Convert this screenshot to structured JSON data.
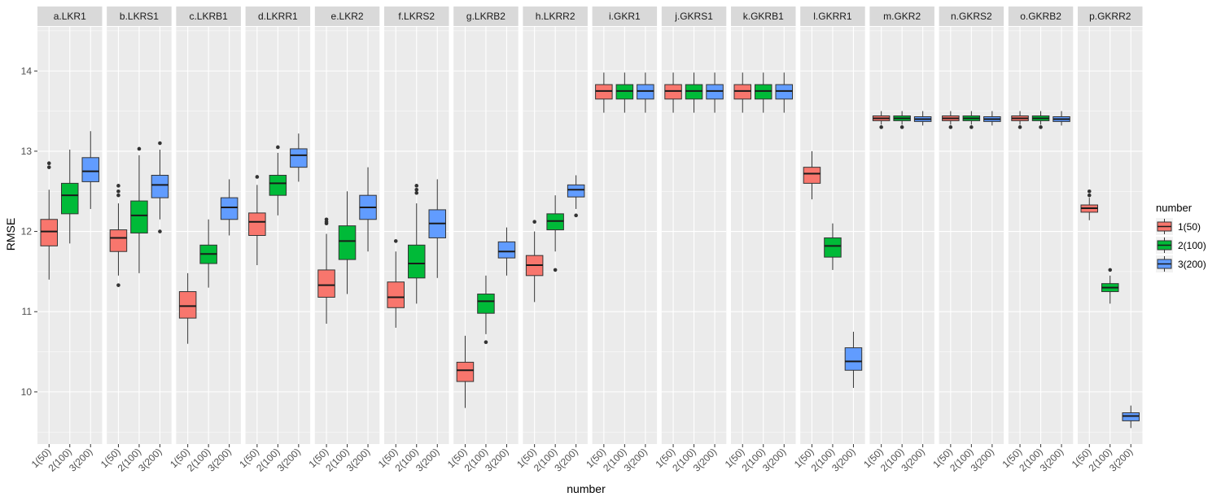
{
  "chart_data": {
    "type": "boxplot",
    "xlabel": "number",
    "ylabel": "RMSE",
    "ylim": [
      9.35,
      14.55
    ],
    "yticks": [
      10,
      11,
      12,
      13,
      14
    ],
    "grid": true,
    "legend": {
      "title": "number",
      "position": "right",
      "entries": [
        "1(50)",
        "2(100)",
        "3(200)"
      ]
    },
    "categories": [
      "1(50)",
      "2(100)",
      "3(200)"
    ],
    "colors": [
      "#F8766D",
      "#00BA38",
      "#619CFF"
    ],
    "panels": [
      {
        "title": "a.LKR1",
        "boxes": [
          {
            "lo": 11.4,
            "q1": 11.82,
            "med": 12.0,
            "q3": 12.15,
            "hi": 12.52,
            "out": [
              12.8,
              12.85
            ]
          },
          {
            "lo": 11.85,
            "q1": 12.22,
            "med": 12.45,
            "q3": 12.6,
            "hi": 13.02,
            "out": []
          },
          {
            "lo": 12.28,
            "q1": 12.62,
            "med": 12.75,
            "q3": 12.92,
            "hi": 13.25,
            "out": []
          }
        ]
      },
      {
        "title": "b.LKRS1",
        "boxes": [
          {
            "lo": 11.45,
            "q1": 11.75,
            "med": 11.92,
            "q3": 12.02,
            "hi": 12.35,
            "out": [
              11.33,
              12.45,
              12.5,
              12.57
            ]
          },
          {
            "lo": 11.48,
            "q1": 11.98,
            "med": 12.2,
            "q3": 12.38,
            "hi": 12.95,
            "out": [
              13.03
            ]
          },
          {
            "lo": 12.15,
            "q1": 12.42,
            "med": 12.58,
            "q3": 12.7,
            "hi": 13.02,
            "out": [
              12.0,
              13.1
            ]
          }
        ]
      },
      {
        "title": "c.LKRB1",
        "boxes": [
          {
            "lo": 10.6,
            "q1": 10.92,
            "med": 11.07,
            "q3": 11.25,
            "hi": 11.48,
            "out": []
          },
          {
            "lo": 11.3,
            "q1": 11.6,
            "med": 11.72,
            "q3": 11.83,
            "hi": 12.15,
            "out": []
          },
          {
            "lo": 11.95,
            "q1": 12.15,
            "med": 12.3,
            "q3": 12.42,
            "hi": 12.65,
            "out": []
          }
        ]
      },
      {
        "title": "d.LKRR1",
        "boxes": [
          {
            "lo": 11.58,
            "q1": 11.95,
            "med": 12.12,
            "q3": 12.23,
            "hi": 12.58,
            "out": [
              12.68
            ]
          },
          {
            "lo": 12.2,
            "q1": 12.45,
            "med": 12.6,
            "q3": 12.7,
            "hi": 12.98,
            "out": [
              13.05
            ]
          },
          {
            "lo": 12.62,
            "q1": 12.8,
            "med": 12.95,
            "q3": 13.03,
            "hi": 13.22,
            "out": []
          }
        ]
      },
      {
        "title": "e.LKR2",
        "boxes": [
          {
            "lo": 10.85,
            "q1": 11.18,
            "med": 11.33,
            "q3": 11.52,
            "hi": 11.97,
            "out": [
              12.1,
              12.12,
              12.15
            ]
          },
          {
            "lo": 11.22,
            "q1": 11.65,
            "med": 11.88,
            "q3": 12.07,
            "hi": 12.5,
            "out": []
          },
          {
            "lo": 11.75,
            "q1": 12.15,
            "med": 12.3,
            "q3": 12.45,
            "hi": 12.8,
            "out": []
          }
        ]
      },
      {
        "title": "f.LKRS2",
        "boxes": [
          {
            "lo": 10.8,
            "q1": 11.05,
            "med": 11.18,
            "q3": 11.37,
            "hi": 11.75,
            "out": [
              11.88
            ]
          },
          {
            "lo": 11.1,
            "q1": 11.42,
            "med": 11.6,
            "q3": 11.83,
            "hi": 12.35,
            "out": [
              12.48,
              12.52,
              12.57
            ]
          },
          {
            "lo": 11.42,
            "q1": 11.92,
            "med": 12.1,
            "q3": 12.27,
            "hi": 12.65,
            "out": []
          }
        ]
      },
      {
        "title": "g.LKRB2",
        "boxes": [
          {
            "lo": 9.8,
            "q1": 10.13,
            "med": 10.27,
            "q3": 10.37,
            "hi": 10.7,
            "out": []
          },
          {
            "lo": 10.72,
            "q1": 10.98,
            "med": 11.13,
            "q3": 11.22,
            "hi": 11.45,
            "out": [
              10.62
            ]
          },
          {
            "lo": 11.45,
            "q1": 11.67,
            "med": 11.75,
            "q3": 11.87,
            "hi": 12.05,
            "out": []
          }
        ]
      },
      {
        "title": "h.LKRR2",
        "boxes": [
          {
            "lo": 11.12,
            "q1": 11.45,
            "med": 11.58,
            "q3": 11.7,
            "hi": 12.0,
            "out": [
              12.12
            ]
          },
          {
            "lo": 11.75,
            "q1": 12.02,
            "med": 12.13,
            "q3": 12.22,
            "hi": 12.45,
            "out": [
              11.52
            ]
          },
          {
            "lo": 12.28,
            "q1": 12.43,
            "med": 12.52,
            "q3": 12.58,
            "hi": 12.7,
            "out": [
              12.2
            ]
          }
        ]
      },
      {
        "title": "i.GKR1",
        "boxes": [
          {
            "lo": 13.48,
            "q1": 13.65,
            "med": 13.75,
            "q3": 13.83,
            "hi": 13.98,
            "out": []
          },
          {
            "lo": 13.48,
            "q1": 13.65,
            "med": 13.75,
            "q3": 13.83,
            "hi": 13.98,
            "out": []
          },
          {
            "lo": 13.48,
            "q1": 13.65,
            "med": 13.75,
            "q3": 13.83,
            "hi": 13.98,
            "out": []
          }
        ]
      },
      {
        "title": "j.GKRS1",
        "boxes": [
          {
            "lo": 13.48,
            "q1": 13.65,
            "med": 13.75,
            "q3": 13.83,
            "hi": 13.98,
            "out": []
          },
          {
            "lo": 13.48,
            "q1": 13.65,
            "med": 13.75,
            "q3": 13.83,
            "hi": 13.98,
            "out": []
          },
          {
            "lo": 13.48,
            "q1": 13.65,
            "med": 13.75,
            "q3": 13.83,
            "hi": 13.98,
            "out": []
          }
        ]
      },
      {
        "title": "k.GKRB1",
        "boxes": [
          {
            "lo": 13.48,
            "q1": 13.65,
            "med": 13.75,
            "q3": 13.83,
            "hi": 13.98,
            "out": []
          },
          {
            "lo": 13.48,
            "q1": 13.65,
            "med": 13.75,
            "q3": 13.83,
            "hi": 13.98,
            "out": []
          },
          {
            "lo": 13.48,
            "q1": 13.65,
            "med": 13.75,
            "q3": 13.83,
            "hi": 13.98,
            "out": []
          }
        ]
      },
      {
        "title": "l.GKRR1",
        "boxes": [
          {
            "lo": 12.4,
            "q1": 12.6,
            "med": 12.72,
            "q3": 12.8,
            "hi": 13.0,
            "out": []
          },
          {
            "lo": 11.52,
            "q1": 11.68,
            "med": 11.82,
            "q3": 11.92,
            "hi": 12.1,
            "out": []
          },
          {
            "lo": 10.05,
            "q1": 10.27,
            "med": 10.38,
            "q3": 10.55,
            "hi": 10.75,
            "out": []
          }
        ]
      },
      {
        "title": "m.GKR2",
        "boxes": [
          {
            "lo": 13.33,
            "q1": 13.38,
            "med": 13.41,
            "q3": 13.44,
            "hi": 13.5,
            "out": [
              13.3
            ]
          },
          {
            "lo": 13.33,
            "q1": 13.38,
            "med": 13.41,
            "q3": 13.44,
            "hi": 13.5,
            "out": [
              13.3
            ]
          },
          {
            "lo": 13.32,
            "q1": 13.37,
            "med": 13.4,
            "q3": 13.43,
            "hi": 13.5,
            "out": []
          }
        ]
      },
      {
        "title": "n.GKRS2",
        "boxes": [
          {
            "lo": 13.33,
            "q1": 13.38,
            "med": 13.41,
            "q3": 13.44,
            "hi": 13.5,
            "out": [
              13.3
            ]
          },
          {
            "lo": 13.33,
            "q1": 13.38,
            "med": 13.41,
            "q3": 13.44,
            "hi": 13.5,
            "out": [
              13.3
            ]
          },
          {
            "lo": 13.32,
            "q1": 13.37,
            "med": 13.4,
            "q3": 13.43,
            "hi": 13.5,
            "out": []
          }
        ]
      },
      {
        "title": "o.GKRB2",
        "boxes": [
          {
            "lo": 13.33,
            "q1": 13.38,
            "med": 13.41,
            "q3": 13.44,
            "hi": 13.5,
            "out": [
              13.3
            ]
          },
          {
            "lo": 13.33,
            "q1": 13.38,
            "med": 13.41,
            "q3": 13.44,
            "hi": 13.5,
            "out": [
              13.3
            ]
          },
          {
            "lo": 13.32,
            "q1": 13.37,
            "med": 13.4,
            "q3": 13.43,
            "hi": 13.5,
            "out": []
          }
        ]
      },
      {
        "title": "p.GKRR2",
        "boxes": [
          {
            "lo": 12.14,
            "q1": 12.24,
            "med": 12.29,
            "q3": 12.33,
            "hi": 12.42,
            "out": [
              12.45,
              12.5
            ]
          },
          {
            "lo": 11.1,
            "q1": 11.25,
            "med": 11.3,
            "q3": 11.35,
            "hi": 11.45,
            "out": [
              11.52
            ]
          },
          {
            "lo": 9.55,
            "q1": 9.64,
            "med": 9.7,
            "q3": 9.74,
            "hi": 9.83,
            "out": []
          }
        ]
      }
    ]
  }
}
